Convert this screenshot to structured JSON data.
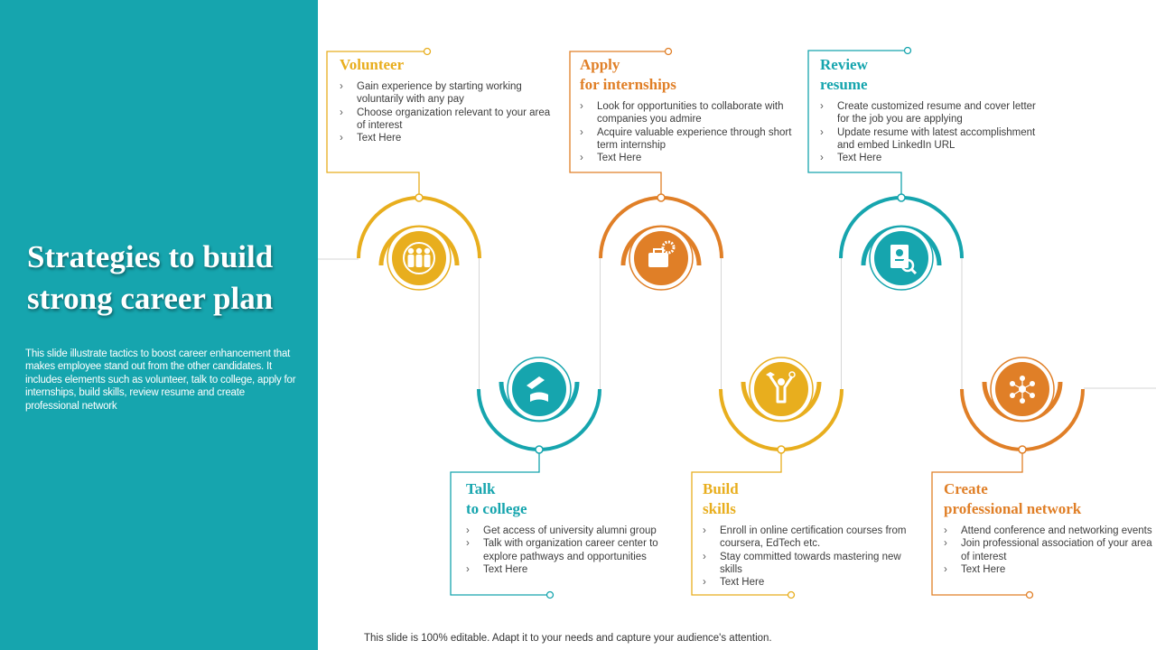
{
  "title": "Strategies to build strong career plan",
  "description": "This slide illustrate tactics to boost career enhancement that makes employee stand out from the other candidates. It includes elements such as volunteer, talk to college, apply for internships, build skills, review resume and create professional network",
  "footer": "This slide is 100% editable. Adapt it to your needs and capture your audience's attention.",
  "colors": {
    "panel": "#16a5ae",
    "yellow": "#e8ae1e",
    "orange": "#e07f27",
    "teal": "#16a5ae",
    "connector": "#d6d6d6"
  },
  "stages": [
    {
      "heading": "Volunteer",
      "color": "#e8ae1e",
      "icon": "people-group-icon",
      "bullets": [
        "Gain experience by starting working voluntarily with any pay",
        "Choose organization relevant to your area of interest",
        "Text Here"
      ]
    },
    {
      "heading": "Talk\nto college",
      "color": "#16a5ae",
      "icon": "graduation-diploma-icon",
      "bullets": [
        "Get access of university alumni group",
        "Talk with organization career center to explore pathways and opportunities",
        "Text Here"
      ]
    },
    {
      "heading": "Apply\nfor internships",
      "color": "#e07f27",
      "icon": "briefcase-gear-icon",
      "bullets": [
        "Look for opportunities to collaborate with companies you admire",
        "Acquire valuable experience through short term internship",
        "Text Here"
      ]
    },
    {
      "heading": "Build\nskills",
      "color": "#e8ae1e",
      "icon": "person-skills-icon",
      "bullets": [
        "Enroll in online certification courses from coursera, EdTech etc.",
        "Stay committed towards mastering new skills",
        "Text Here"
      ]
    },
    {
      "heading": "Review\nresume",
      "color": "#16a5ae",
      "icon": "resume-search-icon",
      "bullets": [
        "Create customized resume and cover letter for the job you are applying",
        "Update resume with latest accomplishment and embed LinkedIn URL",
        "Text Here"
      ]
    },
    {
      "heading": "Create\nprofessional network",
      "color": "#e07f27",
      "icon": "network-icon",
      "bullets": [
        "Attend conference and networking events",
        "Join professional association of your area of interest",
        "Text Here"
      ]
    }
  ]
}
